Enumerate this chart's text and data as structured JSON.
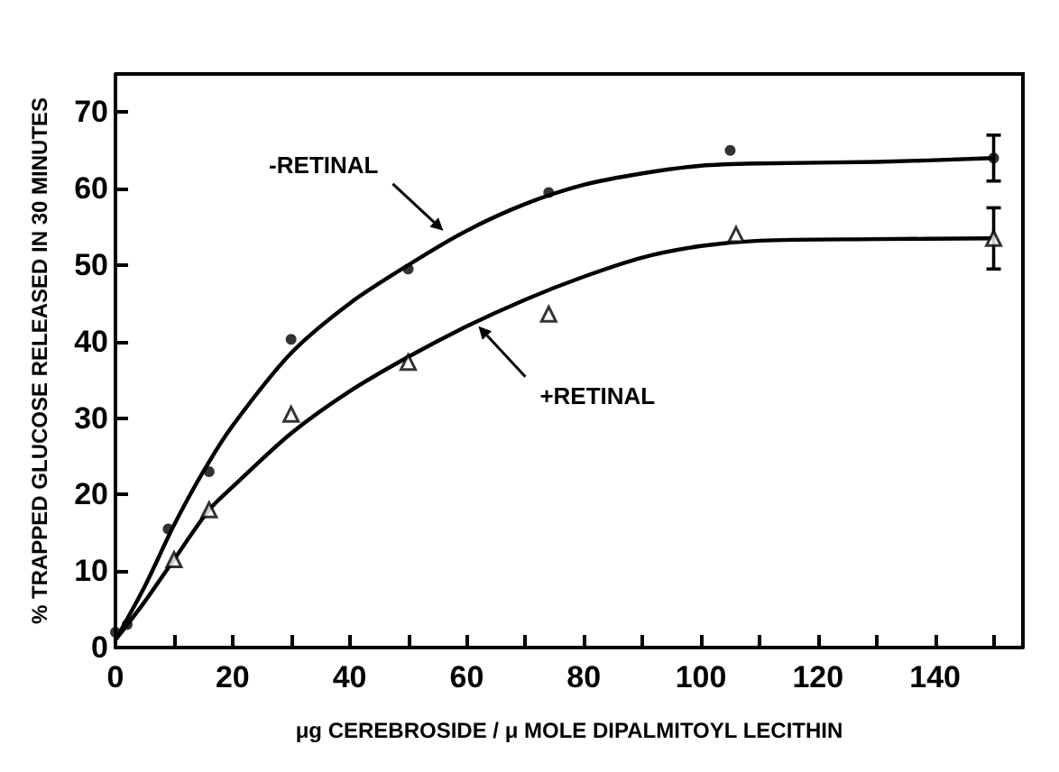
{
  "chart_data": {
    "type": "scatter",
    "xlabel": "μg CEREBROSIDE / μ MOLE DIPALMITOYL LECITHIN",
    "ylabel": "% TRAPPED GLUCOSE RELEASED IN 30 MINUTES",
    "xlim": [
      0,
      155
    ],
    "ylim": [
      0,
      75
    ],
    "xticks": [
      0,
      {
        "value": 10,
        "label": null
      },
      20,
      {
        "value": 30,
        "label": null
      },
      40,
      {
        "value": 50,
        "label": null
      },
      60,
      {
        "value": 70,
        "label": null
      },
      80,
      {
        "value": 90,
        "label": null
      },
      100,
      {
        "value": 110,
        "label": null
      },
      120,
      {
        "value": 130,
        "label": null
      },
      140,
      {
        "value": 150,
        "label": null
      }
    ],
    "yticks": [
      0,
      10,
      20,
      30,
      40,
      50,
      60,
      70
    ],
    "series": [
      {
        "color": "#000000",
        "marker": "circle",
        "x": [
          0,
          2,
          9,
          16,
          30,
          50,
          74,
          105,
          150
        ],
        "values": [
          2,
          3,
          15.5,
          23,
          40.3,
          49.5,
          59.5,
          65,
          64
        ],
        "errors": [
          null,
          null,
          null,
          null,
          null,
          null,
          null,
          null,
          3
        ]
      },
      {
        "color": "#000000",
        "marker": "triangle",
        "x": [
          10,
          16,
          30,
          50,
          74,
          106,
          150
        ],
        "values": [
          11.5,
          18,
          30.5,
          37.3,
          43.6,
          54,
          53.5
        ],
        "errors": [
          null,
          null,
          null,
          null,
          null,
          null,
          4
        ]
      },
      {
        "type": "line",
        "color": "#000000",
        "marker": "none",
        "x": [
          0,
          5,
          10,
          15,
          20,
          30,
          40,
          50,
          60,
          70,
          80,
          90,
          100,
          110,
          130,
          150
        ],
        "values": [
          1,
          8,
          16,
          23,
          29,
          38.5,
          45,
          50,
          54.5,
          58,
          60.5,
          62,
          63,
          63.3,
          63.5,
          64
        ]
      },
      {
        "type": "line",
        "color": "#000000",
        "marker": "none",
        "x": [
          0,
          5,
          10,
          16,
          20,
          30,
          40,
          50,
          60,
          70,
          80,
          90,
          100,
          110,
          130,
          150
        ],
        "values": [
          1,
          6,
          11.5,
          18,
          21,
          28,
          33.5,
          38,
          42,
          45.5,
          48.5,
          51,
          52.5,
          53.2,
          53.4,
          53.5
        ]
      }
    ],
    "annotations": [
      {
        "text": "-RETINAL",
        "x": 56,
        "y": 54.5
      },
      {
        "text": "+RETINAL",
        "x": 62,
        "y": 42
      }
    ]
  }
}
